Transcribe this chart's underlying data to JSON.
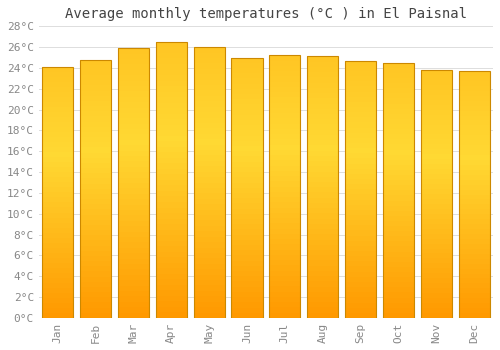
{
  "title": "Average monthly temperatures (°C ) in El Paisnal",
  "months": [
    "Jan",
    "Feb",
    "Mar",
    "Apr",
    "May",
    "Jun",
    "Jul",
    "Aug",
    "Sep",
    "Oct",
    "Nov",
    "Dec"
  ],
  "values": [
    24.1,
    24.8,
    25.9,
    26.5,
    26.0,
    25.0,
    25.2,
    25.1,
    24.7,
    24.5,
    23.8,
    23.7
  ],
  "bar_color_top": "#FFCC44",
  "bar_color_bottom": "#FF9900",
  "bar_edge_color": "#CC8800",
  "background_color": "#ffffff",
  "grid_color": "#dddddd",
  "ylim": [
    0,
    28
  ],
  "ytick_step": 2,
  "title_fontsize": 10,
  "tick_fontsize": 8,
  "tick_color": "#888888",
  "font_family": "monospace"
}
